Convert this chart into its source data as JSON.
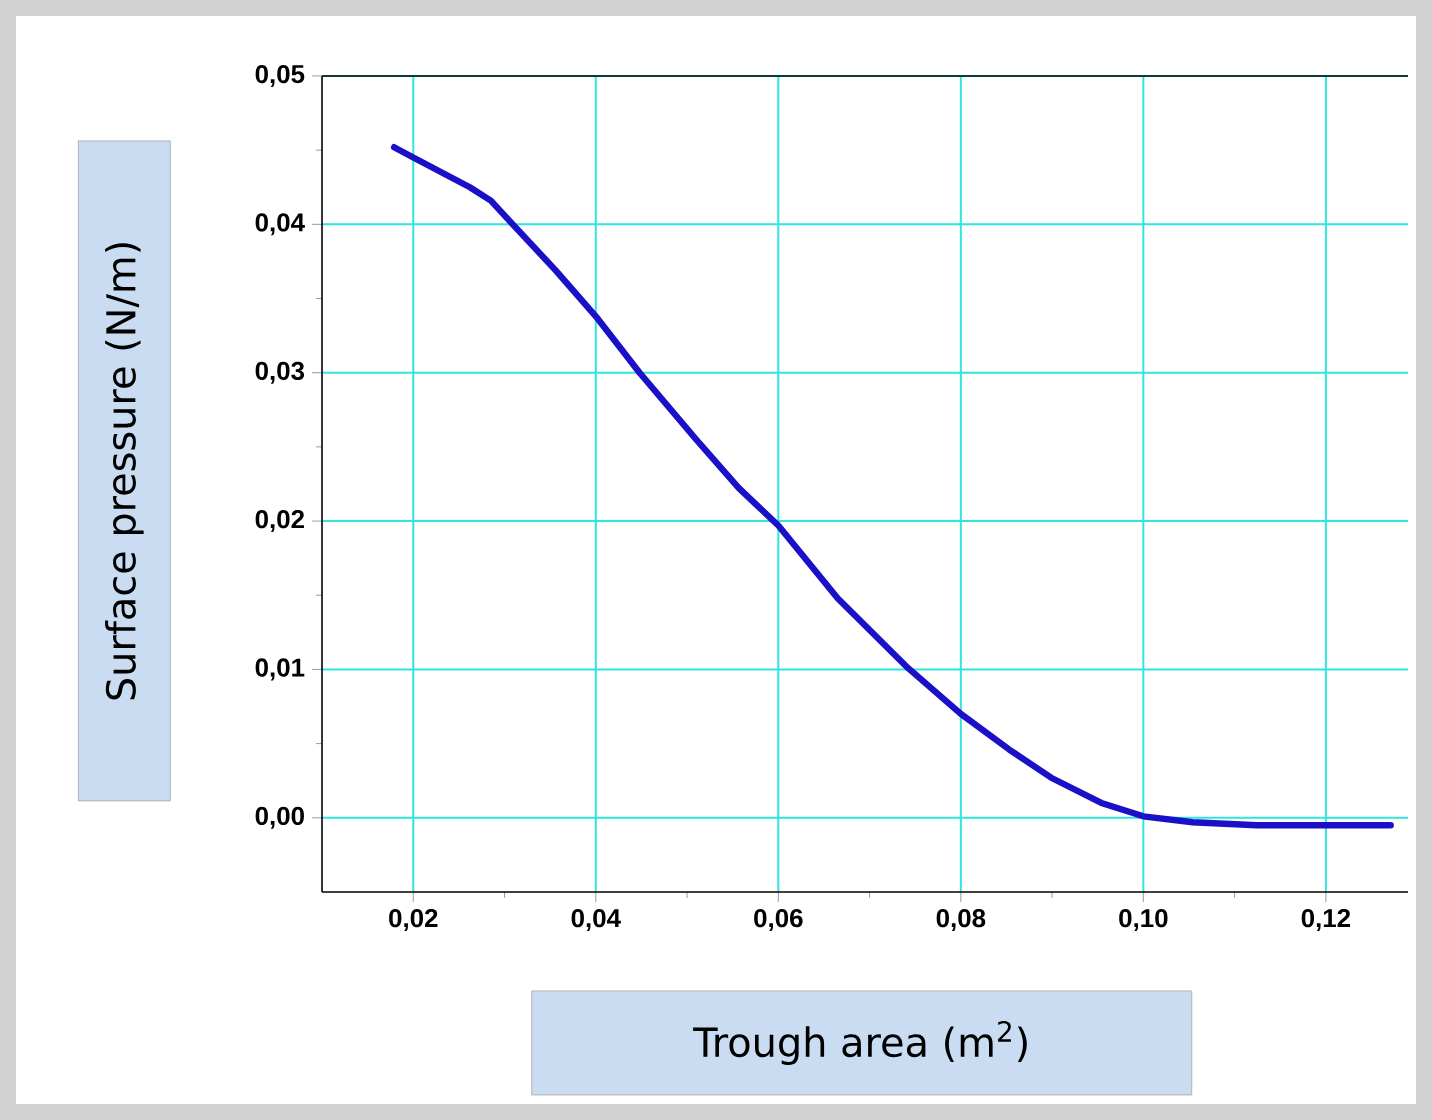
{
  "chart_data": {
    "type": "line",
    "xlabel": "Trough area (m$^{2}$)",
    "ylabel": "Surface pressure (N/m)",
    "xlim": [
      0.01,
      0.129
    ],
    "ylim": [
      -0.005,
      0.05
    ],
    "xticks": [
      {
        "value": 0.02,
        "label": "0,02"
      },
      {
        "value": 0.04,
        "label": "0,04"
      },
      {
        "value": 0.06,
        "label": "0,06"
      },
      {
        "value": 0.08,
        "label": "0,08"
      },
      {
        "value": 0.1,
        "label": "0,10"
      },
      {
        "value": 0.12,
        "label": "0,12"
      }
    ],
    "yticks": [
      {
        "value": 0.0,
        "label": "0,00"
      },
      {
        "value": 0.01,
        "label": "0,01"
      },
      {
        "value": 0.02,
        "label": "0,02"
      },
      {
        "value": 0.03,
        "label": "0,03"
      },
      {
        "value": 0.04,
        "label": "0,04"
      },
      {
        "value": 0.05,
        "label": "0,05"
      }
    ],
    "grid": true,
    "marker": "none",
    "line_style": "solid",
    "series": [
      {
        "color": "#1a10c8",
        "x": [
          0.0179,
          0.02,
          0.0231,
          0.0262,
          0.0285,
          0.0309,
          0.0356,
          0.04,
          0.0448,
          0.051,
          0.0557,
          0.06,
          0.0665,
          0.0742,
          0.08,
          0.0853,
          0.0899,
          0.0954,
          0.1,
          0.1054,
          0.1124,
          0.12,
          0.1271
        ],
        "values": [
          0.0452,
          0.0445,
          0.0435,
          0.0425,
          0.0416,
          0.04,
          0.0369,
          0.0338,
          0.03,
          0.0255,
          0.0222,
          0.0197,
          0.0148,
          0.0101,
          0.007,
          0.0046,
          0.0027,
          0.001,
          0.0001,
          -0.0003,
          -0.0005,
          -0.0005,
          -0.0005
        ]
      }
    ]
  }
}
